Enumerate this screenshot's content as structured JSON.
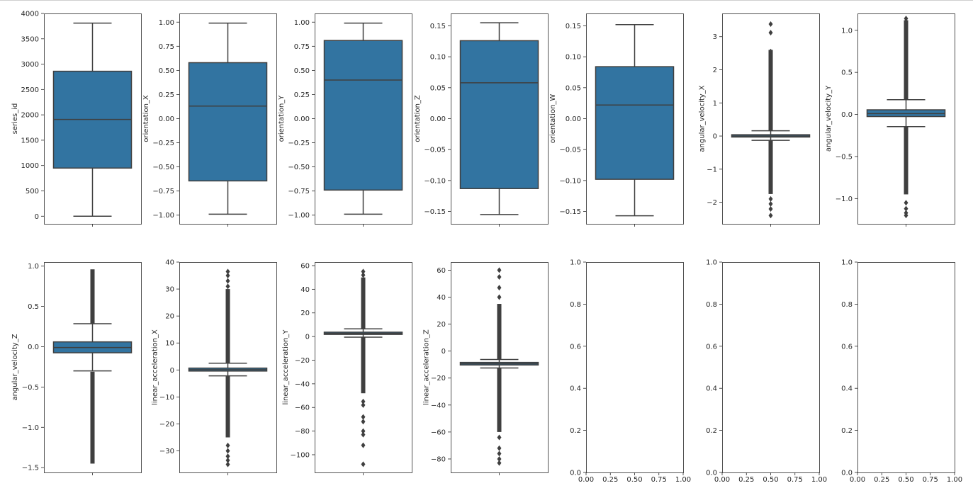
{
  "chart_data": [
    {
      "type": "boxplot",
      "ylabel": "series_id",
      "ylim": [
        -150,
        4000
      ],
      "ticks": [
        0,
        500,
        1000,
        1500,
        2000,
        2500,
        3000,
        3500,
        4000
      ],
      "tick_labels": [
        "0",
        "500",
        "1000",
        "1500",
        "2000",
        "2500",
        "3000",
        "3500",
        "4000"
      ],
      "stats": {
        "min": 0,
        "q1": 950,
        "median": 1910,
        "q3": 2860,
        "max": 3809
      },
      "outliers": []
    },
    {
      "type": "boxplot",
      "ylabel": "orientation_X",
      "ylim": [
        -1.09,
        1.09
      ],
      "ticks": [
        -1,
        -0.75,
        -0.5,
        -0.25,
        0,
        0.25,
        0.5,
        0.75,
        1
      ],
      "tick_labels": [
        "−1.00",
        "−0.75",
        "−0.50",
        "−0.25",
        "0.00",
        "0.25",
        "0.50",
        "0.75",
        "1.00"
      ],
      "stats": {
        "min": -0.99,
        "q1": -0.645,
        "median": 0.13,
        "q3": 0.58,
        "max": 0.99
      },
      "outliers": []
    },
    {
      "type": "boxplot",
      "ylabel": "orientation_Y",
      "ylim": [
        -1.09,
        1.09
      ],
      "ticks": [
        -1,
        -0.75,
        -0.5,
        -0.25,
        0,
        0.25,
        0.5,
        0.75,
        1
      ],
      "tick_labels": [
        "−1.00",
        "−0.75",
        "−0.50",
        "−0.25",
        "0.00",
        "0.25",
        "0.50",
        "0.75",
        "1.00"
      ],
      "stats": {
        "min": -0.99,
        "q1": -0.74,
        "median": 0.4,
        "q3": 0.81,
        "max": 0.99
      },
      "outliers": []
    },
    {
      "type": "boxplot",
      "ylabel": "orientation_Z",
      "ylim": [
        -0.17,
        0.17
      ],
      "ticks": [
        -0.15,
        -0.1,
        -0.05,
        0,
        0.05,
        0.1,
        0.15
      ],
      "tick_labels": [
        "−0.15",
        "−0.10",
        "−0.05",
        "0.00",
        "0.05",
        "0.10",
        "0.15"
      ],
      "stats": {
        "min": -0.155,
        "q1": -0.113,
        "median": 0.058,
        "q3": 0.126,
        "max": 0.155
      },
      "outliers": []
    },
    {
      "type": "boxplot",
      "ylabel": "orientation_W",
      "ylim": [
        -0.17,
        0.17
      ],
      "ticks": [
        -0.15,
        -0.1,
        -0.05,
        0,
        0.05,
        0.1,
        0.15
      ],
      "tick_labels": [
        "−0.15",
        "−0.10",
        "−0.05",
        "0.00",
        "0.05",
        "0.10",
        "0.15"
      ],
      "stats": {
        "min": -0.157,
        "q1": -0.098,
        "median": 0.022,
        "q3": 0.084,
        "max": 0.152
      },
      "outliers": []
    },
    {
      "type": "boxplot",
      "ylabel": "angular_velocity_X",
      "ylim": [
        -2.65,
        3.7
      ],
      "ticks": [
        -2,
        -1,
        0,
        1,
        2,
        3
      ],
      "tick_labels": [
        "−2",
        "−1",
        "0",
        "1",
        "2",
        "3"
      ],
      "stats": {
        "min": -0.13,
        "q1": -0.03,
        "median": 0.0,
        "q3": 0.04,
        "max": 0.16
      },
      "outliers": [],
      "outlier_ranges": [
        [
          0.17,
          2.6
        ],
        [
          -1.75,
          -0.14
        ]
      ],
      "outlier_points": [
        3.38,
        3.12,
        -2.05,
        -2.2,
        -2.4,
        -1.9,
        2.55
      ]
    },
    {
      "type": "boxplot",
      "ylabel": "angular_velocity_Y",
      "ylim": [
        -1.3,
        1.2
      ],
      "ticks": [
        -1,
        -0.5,
        0,
        0.5,
        1
      ],
      "tick_labels": [
        "−1.0",
        "−0.5",
        "0.0",
        "0.5",
        "1.0"
      ],
      "stats": {
        "min": -0.145,
        "q1": -0.025,
        "median": 0.01,
        "q3": 0.055,
        "max": 0.175
      },
      "outliers": [],
      "outlier_ranges": [
        [
          0.18,
          1.12
        ],
        [
          -0.95,
          -0.15
        ]
      ],
      "outlier_points": [
        -1.05,
        -1.12,
        -1.2,
        -1.17,
        1.14
      ]
    },
    {
      "type": "boxplot",
      "ylabel": "angular_velocity_Z",
      "ylim": [
        -1.56,
        1.05
      ],
      "ticks": [
        -1.5,
        -1,
        -0.5,
        0,
        0.5,
        1
      ],
      "tick_labels": [
        "−1.5",
        "−1.0",
        "−0.5",
        "0.0",
        "0.5",
        "1.0"
      ],
      "stats": {
        "min": -0.3,
        "q1": -0.075,
        "median": -0.01,
        "q3": 0.06,
        "max": 0.285
      },
      "outliers": [],
      "outlier_ranges": [
        [
          0.29,
          0.96
        ],
        [
          -1.45,
          -0.31
        ]
      ],
      "outlier_points": []
    },
    {
      "type": "boxplot",
      "ylabel": "linear_acceleration_X",
      "ylim": [
        -38,
        40
      ],
      "ticks": [
        -30,
        -20,
        -10,
        0,
        10,
        20,
        30,
        40
      ],
      "tick_labels": [
        "−30",
        "−20",
        "−10",
        "0",
        "10",
        "20",
        "30",
        "40"
      ],
      "stats": {
        "min": -2.2,
        "q1": -0.4,
        "median": 0.1,
        "q3": 0.7,
        "max": 2.5
      },
      "outliers": [],
      "outlier_ranges": [
        [
          2.6,
          30
        ],
        [
          -25,
          -2.3
        ]
      ],
      "outlier_points": [
        31,
        33,
        35,
        36.5,
        -28,
        -30,
        -32,
        -33.5,
        -35
      ]
    },
    {
      "type": "boxplot",
      "ylabel": "linear_acceleration_Y",
      "ylim": [
        -115,
        63
      ],
      "ticks": [
        -100,
        -80,
        -60,
        -40,
        -20,
        0,
        20,
        40,
        60
      ],
      "tick_labels": [
        "−100",
        "−80",
        "−60",
        "−40",
        "−20",
        "0",
        "20",
        "40",
        "60"
      ],
      "stats": {
        "min": -0.5,
        "q1": 1.8,
        "median": 2.7,
        "q3": 3.7,
        "max": 6.5
      },
      "outliers": [],
      "outlier_ranges": [
        [
          6.6,
          50
        ],
        [
          -48,
          -0.6
        ]
      ],
      "outlier_points": [
        52,
        55,
        -55,
        -58,
        -68,
        -72,
        -80,
        -83,
        -92,
        -108
      ]
    },
    {
      "type": "boxplot",
      "ylabel": "linear_acceleration_Z",
      "ylim": [
        -90,
        66
      ],
      "ticks": [
        -80,
        -60,
        -40,
        -20,
        0,
        20,
        40,
        60
      ],
      "tick_labels": [
        "−80",
        "−60",
        "−40",
        "−20",
        "0",
        "20",
        "40",
        "60"
      ],
      "stats": {
        "min": -12.5,
        "q1": -10.3,
        "median": -9.4,
        "q3": -8.4,
        "max": -6.2
      },
      "outliers": [],
      "outlier_ranges": [
        [
          -6.1,
          35
        ],
        [
          -60,
          -12.6
        ]
      ],
      "outlier_points": [
        40,
        47,
        55,
        60,
        -64,
        -72,
        -76,
        -80,
        -83
      ]
    },
    {
      "type": "empty",
      "ylim": [
        0,
        1
      ],
      "ticks": [
        0,
        0.2,
        0.4,
        0.6,
        0.8,
        1
      ],
      "tick_labels": [
        "0.0",
        "0.2",
        "0.4",
        "0.6",
        "0.8",
        "1.0"
      ],
      "xlim": [
        0,
        1
      ],
      "xticks": [
        0,
        0.25,
        0.5,
        0.75,
        1
      ],
      "xtick_labels": [
        "0.00",
        "0.25",
        "0.50",
        "0.75",
        "1.00"
      ]
    },
    {
      "type": "empty",
      "ylim": [
        0,
        1
      ],
      "ticks": [
        0,
        0.2,
        0.4,
        0.6,
        0.8,
        1
      ],
      "tick_labels": [
        "0.0",
        "0.2",
        "0.4",
        "0.6",
        "0.8",
        "1.0"
      ],
      "xlim": [
        0,
        1
      ],
      "xticks": [
        0,
        0.25,
        0.5,
        0.75,
        1
      ],
      "xtick_labels": [
        "0.00",
        "0.25",
        "0.50",
        "0.75",
        "1.00"
      ]
    },
    {
      "type": "empty",
      "ylim": [
        0,
        1
      ],
      "ticks": [
        0,
        0.2,
        0.4,
        0.6,
        0.8,
        1
      ],
      "tick_labels": [
        "0.0",
        "0.2",
        "0.4",
        "0.6",
        "0.8",
        "1.0"
      ],
      "xlim": [
        0,
        1
      ],
      "xticks": [
        0,
        0.25,
        0.5,
        0.75,
        1
      ],
      "xtick_labels": [
        "0.00",
        "0.25",
        "0.50",
        "0.75",
        "1.00"
      ]
    }
  ],
  "colors": {
    "box_fill": "#3274a1",
    "line": "#3f3f3f",
    "axis": "#262626",
    "background": "#ffffff"
  }
}
